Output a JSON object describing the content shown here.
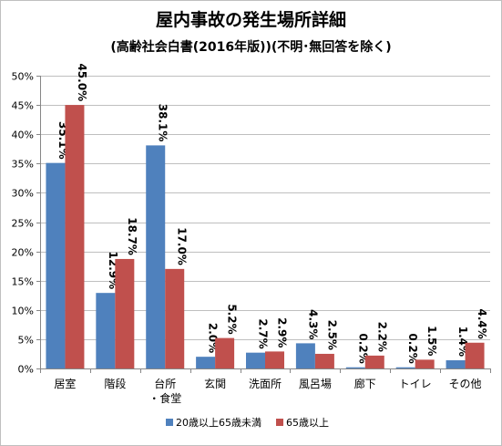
{
  "chart_data": {
    "type": "bar",
    "title": "屋内事故の発生場所詳細",
    "subtitle": "(高齢社会白書(2016年版))(不明･無回答を除く)",
    "categories": [
      [
        "居室"
      ],
      [
        "階段"
      ],
      [
        "台所",
        "・食堂"
      ],
      [
        "玄関"
      ],
      [
        "洗面所"
      ],
      [
        "風呂場"
      ],
      [
        "廊下"
      ],
      [
        "トイレ"
      ],
      [
        "その他"
      ]
    ],
    "series": [
      {
        "name": "20歳以上65歳未満",
        "color": "#4f81bd",
        "values": [
          35.1,
          12.9,
          38.1,
          2.0,
          2.7,
          4.3,
          0.2,
          0.2,
          1.4
        ],
        "labels": [
          "35.1%",
          "12.9%",
          "38.1%",
          "2.0%",
          "2.7%",
          "4.3%",
          "0.2%",
          "0.2%",
          "1.4%"
        ]
      },
      {
        "name": "65歳以上",
        "color": "#c0504d",
        "values": [
          45.0,
          18.7,
          17.0,
          5.2,
          2.9,
          2.5,
          2.2,
          1.5,
          4.4
        ],
        "labels": [
          "45.0%",
          "18.7%",
          "17.0%",
          "5.2%",
          "2.9%",
          "2.5%",
          "2.2%",
          "1.5%",
          "4.4%"
        ]
      }
    ],
    "yticks": [
      "0%",
      "5%",
      "10%",
      "15%",
      "20%",
      "25%",
      "30%",
      "35%",
      "40%",
      "45%",
      "50%"
    ],
    "ylim": [
      0,
      50
    ],
    "xlabel": "",
    "ylabel": "",
    "grid": true,
    "legend_position": "bottom"
  }
}
